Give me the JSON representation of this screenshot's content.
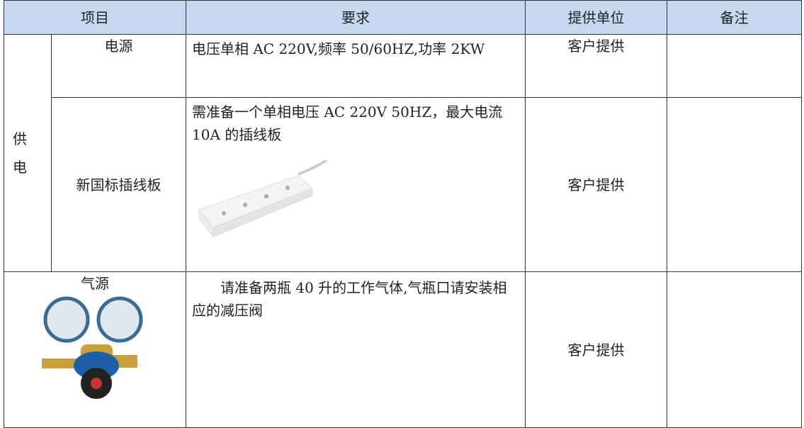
{
  "table": {
    "headers": [
      "项目",
      "要求",
      "提供单位",
      "备注"
    ],
    "group_label": "供电",
    "rows": [
      {
        "item": "电源",
        "requirement": "电压单相 AC 220V,频率 50/60HZ,功率 2KW",
        "provider": "客户提供"
      },
      {
        "item": "新国标插线板",
        "requirement": "需准备一个单相电压 AC 220V 50HZ，最大电流 10A 的插线板",
        "provider": "客户提供"
      },
      {
        "item": "气源",
        "requirement": "请准备两瓶 40 升的工作气体,气瓶口请安装相应的减压阀",
        "provider": "客户提供"
      }
    ]
  }
}
